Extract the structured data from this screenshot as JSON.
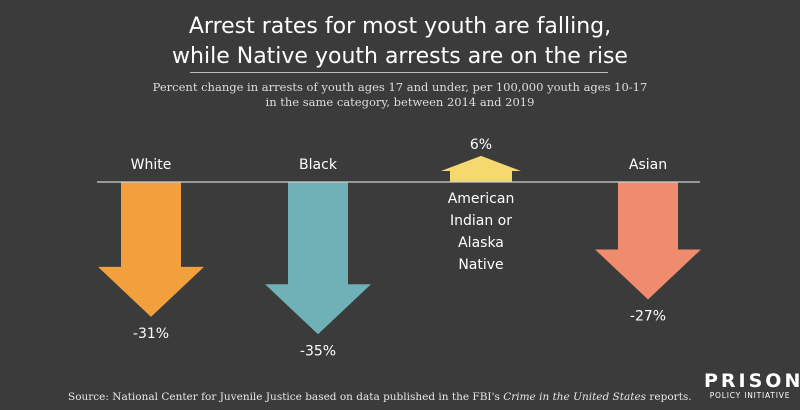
{
  "title_line1": "Arrest rates for most youth are falling,",
  "title_line2": "while Native youth arrests are on the rise",
  "subtitle_line1": "Percent change in arrests of youth ages 17 and under, per 100,000 youth ages 10-17",
  "subtitle_line2": "in the same category, between 2014 and 2019",
  "source_prefix": "Source: National Center for Juvenile Justice based on data published in the FBI's ",
  "source_italic": "Crime in the United States",
  "source_suffix": " reports.",
  "logo": {
    "line1": "PRISON",
    "line2": "POLICY INITIATIVE"
  },
  "chart_data": {
    "type": "bar",
    "title": "",
    "categories": [
      "White",
      "Black",
      "American Indian or Alaska Native",
      "Asian"
    ],
    "values": [
      -31,
      -35,
      6,
      -27
    ],
    "value_labels": [
      "-31%",
      "-35%",
      "6%",
      "-27%"
    ],
    "category_label_lines": [
      [
        "White"
      ],
      [
        "Black"
      ],
      [
        "American",
        "Indian or",
        "Alaska",
        "Native"
      ],
      [
        "Asian"
      ]
    ],
    "colors": [
      "#f2a03d",
      "#6fb1b6",
      "#f5d86e",
      "#ef8c6e"
    ],
    "baseline": 0,
    "grid": false
  }
}
